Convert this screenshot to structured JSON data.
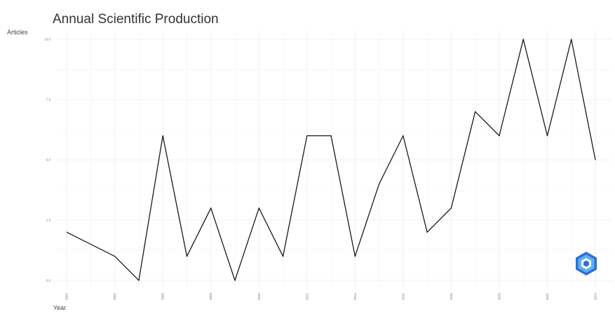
{
  "chart_data": {
    "type": "line",
    "title": "Annual Scientific Production",
    "xlabel": "Year",
    "ylabel": "Articles",
    "x": [
      2002,
      2004,
      2005,
      2006,
      2007,
      2008,
      2009,
      2010,
      2011,
      2012,
      2013,
      2014,
      2015,
      2016,
      2017,
      2018,
      2019,
      2020,
      2021,
      2022,
      2023,
      2024
    ],
    "series": [
      {
        "values": [
          2,
          1,
          0,
          6,
          1,
          3,
          0,
          3,
          1,
          6,
          6,
          1,
          4,
          6,
          2,
          3,
          7,
          6,
          10,
          6,
          10,
          5
        ]
      }
    ],
    "xticks": [
      2002,
      2004,
      2006,
      2008,
      2010,
      2012,
      2014,
      2016,
      2018,
      2020,
      2022,
      2024
    ],
    "xtick_labels": [
      "2002",
      "2004",
      "2006",
      "2008",
      "2010",
      "2012",
      "2014",
      "2016",
      "2018",
      "2020",
      "2022",
      "2024"
    ],
    "yticks": [
      0,
      2.5,
      5,
      7.5,
      10
    ],
    "ytick_labels": [
      "0.0",
      "2.5",
      "5.0",
      "7.5",
      "10.0"
    ],
    "ylim": [
      0,
      10
    ],
    "grid": true,
    "line_color": "#1a1a1a",
    "logo_icon": "hexagon-logo-icon"
  }
}
